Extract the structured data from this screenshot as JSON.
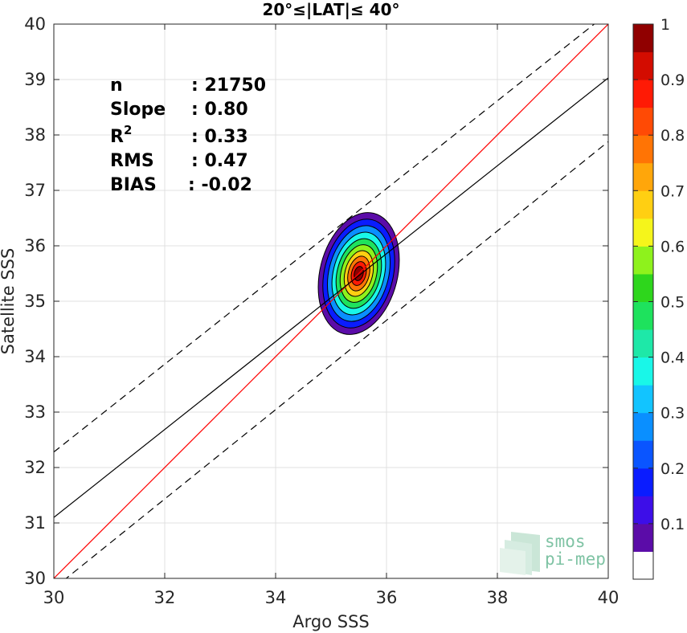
{
  "chart_data": {
    "type": "heatmap",
    "subtype": "density-contour scatter comparison",
    "title": "20°≤|LAT|≤ 40°",
    "xlabel": "Argo SSS",
    "ylabel": "Satellite SSS",
    "xlim": [
      30,
      40
    ],
    "ylim": [
      30,
      40
    ],
    "x_ticks": [
      "30",
      "32",
      "34",
      "36",
      "38",
      "40"
    ],
    "y_ticks": [
      "30",
      "31",
      "32",
      "33",
      "34",
      "35",
      "36",
      "37",
      "38",
      "39",
      "40"
    ],
    "grid": true,
    "stats": [
      {
        "key": "n",
        "value": ": 21750"
      },
      {
        "key": "Slope",
        "value": ": 0.80"
      },
      {
        "key": "R",
        "sup": "2",
        "value": ": 0.33"
      },
      {
        "key": "RMS",
        "value": ": 0.47"
      },
      {
        "key": "BIAS",
        "value": ": -0.02"
      }
    ],
    "lines": [
      {
        "name": "identity",
        "color": "#ff0000",
        "dash": false,
        "points": [
          [
            30,
            30
          ],
          [
            40,
            40
          ]
        ]
      },
      {
        "name": "regression",
        "color": "#000000",
        "dash": false,
        "points": [
          [
            30,
            31.1
          ],
          [
            40,
            39.03
          ]
        ]
      },
      {
        "name": "upper bound",
        "color": "#000000",
        "dash": true,
        "points": [
          [
            30,
            32.28
          ],
          [
            40,
            40.2
          ]
        ]
      },
      {
        "name": "lower bound",
        "color": "#000000",
        "dash": true,
        "points": [
          [
            30,
            29.82
          ],
          [
            40,
            37.88
          ]
        ]
      }
    ],
    "density": {
      "center": [
        35.5,
        35.5
      ],
      "levels": [
        {
          "level": 0.05,
          "rx": 0.7,
          "ry": 1.12
        },
        {
          "level": 0.1,
          "rx": 0.62,
          "ry": 1.0
        },
        {
          "level": 0.2,
          "rx": 0.54,
          "ry": 0.88
        },
        {
          "level": 0.3,
          "rx": 0.46,
          "ry": 0.76
        },
        {
          "level": 0.4,
          "rx": 0.39,
          "ry": 0.64
        },
        {
          "level": 0.5,
          "rx": 0.32,
          "ry": 0.53
        },
        {
          "level": 0.6,
          "rx": 0.25,
          "ry": 0.42
        },
        {
          "level": 0.7,
          "rx": 0.19,
          "ry": 0.32
        },
        {
          "level": 0.8,
          "rx": 0.13,
          "ry": 0.22
        },
        {
          "level": 0.9,
          "rx": 0.08,
          "ry": 0.13
        }
      ]
    },
    "colorbar": {
      "ticks": [
        "0.1",
        "0.2",
        "0.3",
        "0.4",
        "0.5",
        "0.6",
        "0.7",
        "0.8",
        "0.9",
        "1"
      ],
      "min": 0,
      "max": 1,
      "colors": [
        "#ffffff",
        "#5b0ca8",
        "#3d0ee8",
        "#0a1cff",
        "#0a55ff",
        "#0a8fff",
        "#12c4ff",
        "#19f7e8",
        "#1ee8a8",
        "#1ee25d",
        "#2ed61c",
        "#8ef21c",
        "#f5f51b",
        "#ffcf12",
        "#ffa60a",
        "#ff7405",
        "#ff4a05",
        "#ff1a05",
        "#d30c00",
        "#900000"
      ]
    }
  },
  "logo": {
    "line1": "smos",
    "line2": "pi-mep"
  },
  "colors": {
    "identity": "#ff0000",
    "regression": "#000000",
    "grid": "#e0e0e0"
  }
}
